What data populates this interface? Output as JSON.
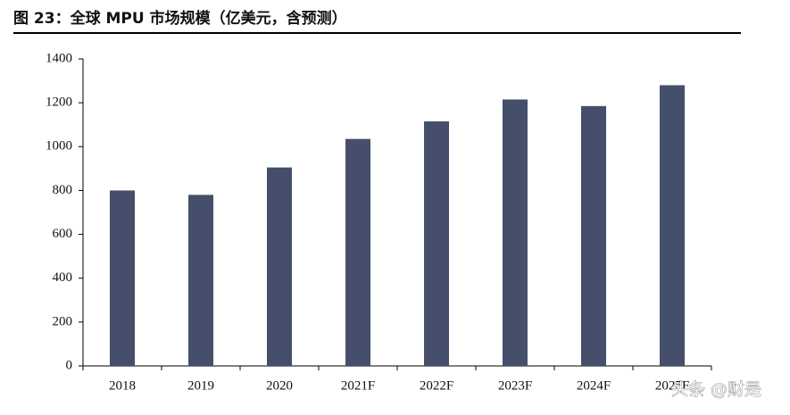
{
  "chart_data": {
    "type": "bar",
    "title": "图 23：全球 MPU 市场规模（亿美元，含预测）",
    "categories": [
      "2018",
      "2019",
      "2020",
      "2021F",
      "2022F",
      "2023F",
      "2024F",
      "2025F"
    ],
    "values": [
      800,
      780,
      905,
      1035,
      1115,
      1215,
      1185,
      1280
    ],
    "color": "#454f6b",
    "ylim": [
      0,
      1400
    ],
    "yticks": [
      0,
      200,
      400,
      600,
      800,
      1000,
      1200,
      1400
    ],
    "grid": false,
    "watermark": "头条 @财是"
  }
}
